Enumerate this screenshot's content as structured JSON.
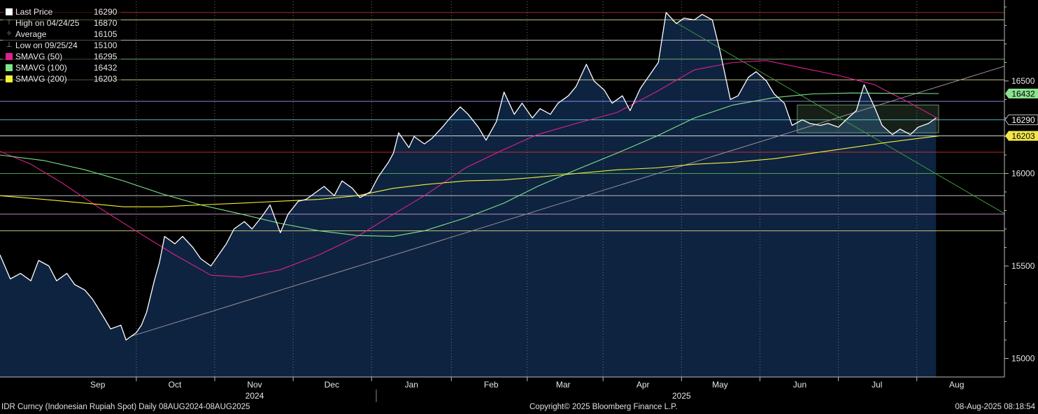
{
  "chart_data": {
    "type": "line",
    "title": "",
    "x_range": [
      "2024-08-08",
      "2025-08-08"
    ],
    "ylim": [
      14900,
      16930
    ],
    "y_ticks": [
      15000,
      15500,
      16000,
      16500
    ],
    "x_ticks": [
      {
        "date": "2024-09-15",
        "label": "Sep"
      },
      {
        "date": "2024-10-15",
        "label": "Oct"
      },
      {
        "date": "2024-11-15",
        "label": "Nov"
      },
      {
        "date": "2024-12-15",
        "label": "Dec"
      },
      {
        "date": "2025-01-15",
        "label": "Jan"
      },
      {
        "date": "2025-02-15",
        "label": "Feb"
      },
      {
        "date": "2025-03-15",
        "label": "Mar"
      },
      {
        "date": "2025-04-15",
        "label": "Apr"
      },
      {
        "date": "2025-05-15",
        "label": "May"
      },
      {
        "date": "2025-06-15",
        "label": "Jun"
      },
      {
        "date": "2025-07-15",
        "label": "Jul"
      },
      {
        "date": "2025-08-15",
        "label": "Aug"
      }
    ],
    "year_labels": [
      {
        "date": "2024-11-15",
        "label": "2024"
      },
      {
        "date": "2025-04-30",
        "label": "2025"
      }
    ],
    "legend": [
      {
        "symbol": "square",
        "label": "Last Price",
        "value": "16290",
        "color": "#ffffff"
      },
      {
        "symbol": "high",
        "label": "High on 04/24/25",
        "value": "16870",
        "color": "#9a9a9a"
      },
      {
        "symbol": "avg",
        "label": "Average",
        "value": "16105",
        "color": "#9a9a9a"
      },
      {
        "symbol": "low",
        "label": "Low on 09/25/24",
        "value": "15100",
        "color": "#9a9a9a"
      },
      {
        "symbol": "square",
        "label": "SMAVG (50)",
        "value": "16295",
        "color": "#e0208f"
      },
      {
        "symbol": "square",
        "label": "SMAVG (100)",
        "value": "16432",
        "color": "#7ee68a"
      },
      {
        "symbol": "square",
        "label": "SMAVG (200)",
        "value": "16203",
        "color": "#f2f23a"
      }
    ],
    "value_tags": [
      {
        "value": 16432,
        "label": "16432",
        "bg": "#8be28f",
        "fg": "#000000"
      },
      {
        "value": 16290,
        "label": "16290",
        "bg": "#000000",
        "fg": "#ffffff"
      },
      {
        "value": 16203,
        "label": "16203",
        "bg": "#f2e64a",
        "fg": "#000000"
      }
    ],
    "horizontal_lines": [
      {
        "value": 16870,
        "color": "#c0392b"
      },
      {
        "value": 16830,
        "color": "#e8e08a"
      },
      {
        "value": 16720,
        "color": "#d8d8e8"
      },
      {
        "value": 16618,
        "color": "#7ec97e"
      },
      {
        "value": 16506,
        "color": "#e8e08a"
      },
      {
        "value": 16390,
        "color": "#9aa0ff"
      },
      {
        "value": 16290,
        "color": "#5fd0e0"
      },
      {
        "value": 16203,
        "color": "#ffffff"
      },
      {
        "value": 16115,
        "color": "#e03030"
      },
      {
        "value": 16000,
        "color": "#50c050"
      },
      {
        "value": 15880,
        "color": "#d8d8d8"
      },
      {
        "value": 15780,
        "color": "#d8a0e0"
      },
      {
        "value": 15690,
        "color": "#e8e08a"
      }
    ],
    "trend_lines": [
      {
        "from": [
          "2024-09-28",
          15120
        ],
        "to": [
          "2025-08-08",
          16470
        ],
        "color": "#9a8f9a"
      },
      {
        "from": [
          "2025-04-26",
          16830
        ],
        "to": [
          "2025-08-08",
          15990
        ],
        "color": "#3f9a3f"
      }
    ],
    "channel_box": {
      "from": "2025-06-14",
      "to": "2025-08-08",
      "top": 16370,
      "bottom": 16220,
      "color": "#9fe0a0"
    },
    "series": [
      {
        "name": "Last Price",
        "color": "#ffffff",
        "fill": "#0e2340",
        "points": [
          [
            "2024-08-08",
            15560
          ],
          [
            "2024-08-12",
            15430
          ],
          [
            "2024-08-16",
            15460
          ],
          [
            "2024-08-20",
            15420
          ],
          [
            "2024-08-23",
            15530
          ],
          [
            "2024-08-27",
            15500
          ],
          [
            "2024-08-30",
            15420
          ],
          [
            "2024-09-03",
            15460
          ],
          [
            "2024-09-06",
            15400
          ],
          [
            "2024-09-10",
            15370
          ],
          [
            "2024-09-13",
            15320
          ],
          [
            "2024-09-17",
            15230
          ],
          [
            "2024-09-20",
            15160
          ],
          [
            "2024-09-24",
            15180
          ],
          [
            "2024-09-26",
            15100
          ],
          [
            "2024-09-30",
            15140
          ],
          [
            "2024-10-02",
            15180
          ],
          [
            "2024-10-04",
            15250
          ],
          [
            "2024-10-07",
            15420
          ],
          [
            "2024-10-09",
            15520
          ],
          [
            "2024-10-11",
            15660
          ],
          [
            "2024-10-15",
            15620
          ],
          [
            "2024-10-18",
            15660
          ],
          [
            "2024-10-22",
            15600
          ],
          [
            "2024-10-25",
            15540
          ],
          [
            "2024-10-29",
            15500
          ],
          [
            "2024-11-01",
            15560
          ],
          [
            "2024-11-04",
            15620
          ],
          [
            "2024-11-07",
            15700
          ],
          [
            "2024-11-11",
            15740
          ],
          [
            "2024-11-14",
            15700
          ],
          [
            "2024-11-18",
            15770
          ],
          [
            "2024-11-21",
            15830
          ],
          [
            "2024-11-25",
            15680
          ],
          [
            "2024-11-28",
            15780
          ],
          [
            "2024-12-02",
            15850
          ],
          [
            "2024-12-05",
            15860
          ],
          [
            "2024-12-09",
            15900
          ],
          [
            "2024-12-12",
            15930
          ],
          [
            "2024-12-16",
            15880
          ],
          [
            "2024-12-19",
            15960
          ],
          [
            "2024-12-23",
            15920
          ],
          [
            "2024-12-26",
            15870
          ],
          [
            "2024-12-30",
            15900
          ],
          [
            "2025-01-02",
            15980
          ],
          [
            "2025-01-06",
            16060
          ],
          [
            "2025-01-08",
            16110
          ],
          [
            "2025-01-10",
            16220
          ],
          [
            "2025-01-14",
            16140
          ],
          [
            "2025-01-16",
            16200
          ],
          [
            "2025-01-20",
            16160
          ],
          [
            "2025-01-23",
            16190
          ],
          [
            "2025-01-27",
            16250
          ],
          [
            "2025-01-30",
            16300
          ],
          [
            "2025-02-03",
            16360
          ],
          [
            "2025-02-06",
            16320
          ],
          [
            "2025-02-10",
            16250
          ],
          [
            "2025-02-13",
            16180
          ],
          [
            "2025-02-17",
            16280
          ],
          [
            "2025-02-20",
            16440
          ],
          [
            "2025-02-24",
            16320
          ],
          [
            "2025-02-27",
            16380
          ],
          [
            "2025-03-03",
            16300
          ],
          [
            "2025-03-06",
            16350
          ],
          [
            "2025-03-10",
            16320
          ],
          [
            "2025-03-13",
            16380
          ],
          [
            "2025-03-17",
            16420
          ],
          [
            "2025-03-20",
            16470
          ],
          [
            "2025-03-24",
            16590
          ],
          [
            "2025-03-27",
            16500
          ],
          [
            "2025-03-31",
            16450
          ],
          [
            "2025-04-03",
            16380
          ],
          [
            "2025-04-07",
            16420
          ],
          [
            "2025-04-10",
            16340
          ],
          [
            "2025-04-14",
            16460
          ],
          [
            "2025-04-17",
            16520
          ],
          [
            "2025-04-21",
            16600
          ],
          [
            "2025-04-24",
            16870
          ],
          [
            "2025-04-28",
            16810
          ],
          [
            "2025-05-01",
            16840
          ],
          [
            "2025-05-05",
            16830
          ],
          [
            "2025-05-08",
            16860
          ],
          [
            "2025-05-12",
            16830
          ],
          [
            "2025-05-15",
            16660
          ],
          [
            "2025-05-19",
            16400
          ],
          [
            "2025-05-22",
            16420
          ],
          [
            "2025-05-26",
            16520
          ],
          [
            "2025-05-29",
            16550
          ],
          [
            "2025-06-02",
            16500
          ],
          [
            "2025-06-05",
            16430
          ],
          [
            "2025-06-09",
            16380
          ],
          [
            "2025-06-12",
            16260
          ],
          [
            "2025-06-16",
            16290
          ],
          [
            "2025-06-19",
            16270
          ],
          [
            "2025-06-23",
            16260
          ],
          [
            "2025-06-26",
            16270
          ],
          [
            "2025-06-30",
            16250
          ],
          [
            "2025-07-03",
            16290
          ],
          [
            "2025-07-07",
            16340
          ],
          [
            "2025-07-10",
            16480
          ],
          [
            "2025-07-14",
            16360
          ],
          [
            "2025-07-17",
            16260
          ],
          [
            "2025-07-21",
            16210
          ],
          [
            "2025-07-24",
            16240
          ],
          [
            "2025-07-28",
            16210
          ],
          [
            "2025-07-31",
            16250
          ],
          [
            "2025-08-04",
            16270
          ],
          [
            "2025-08-07",
            16300
          ]
        ]
      },
      {
        "name": "SMAVG (50)",
        "color": "#e0208f",
        "points": [
          [
            "2024-08-08",
            16120
          ],
          [
            "2024-08-20",
            16050
          ],
          [
            "2024-09-01",
            15950
          ],
          [
            "2024-09-15",
            15820
          ],
          [
            "2024-10-01",
            15680
          ],
          [
            "2024-10-15",
            15560
          ],
          [
            "2024-10-29",
            15450
          ],
          [
            "2024-11-10",
            15440
          ],
          [
            "2024-11-25",
            15480
          ],
          [
            "2024-12-10",
            15560
          ],
          [
            "2024-12-25",
            15660
          ],
          [
            "2025-01-08",
            15780
          ],
          [
            "2025-01-20",
            15880
          ],
          [
            "2025-02-05",
            16030
          ],
          [
            "2025-02-20",
            16130
          ],
          [
            "2025-03-05",
            16210
          ],
          [
            "2025-03-20",
            16270
          ],
          [
            "2025-04-05",
            16330
          ],
          [
            "2025-04-20",
            16440
          ],
          [
            "2025-05-05",
            16560
          ],
          [
            "2025-05-20",
            16600
          ],
          [
            "2025-06-02",
            16610
          ],
          [
            "2025-06-16",
            16570
          ],
          [
            "2025-06-30",
            16530
          ],
          [
            "2025-07-14",
            16480
          ],
          [
            "2025-07-28",
            16380
          ],
          [
            "2025-08-08",
            16295
          ]
        ]
      },
      {
        "name": "SMAVG (100)",
        "color": "#7ee68a",
        "points": [
          [
            "2024-08-08",
            16100
          ],
          [
            "2024-08-25",
            16070
          ],
          [
            "2024-09-10",
            16020
          ],
          [
            "2024-09-25",
            15960
          ],
          [
            "2024-10-10",
            15890
          ],
          [
            "2024-10-25",
            15830
          ],
          [
            "2024-11-10",
            15780
          ],
          [
            "2024-11-25",
            15730
          ],
          [
            "2024-12-10",
            15690
          ],
          [
            "2024-12-25",
            15665
          ],
          [
            "2025-01-08",
            15660
          ],
          [
            "2025-01-20",
            15690
          ],
          [
            "2025-02-05",
            15760
          ],
          [
            "2025-02-20",
            15840
          ],
          [
            "2025-03-05",
            15930
          ],
          [
            "2025-03-20",
            16020
          ],
          [
            "2025-04-05",
            16110
          ],
          [
            "2025-04-20",
            16200
          ],
          [
            "2025-05-05",
            16300
          ],
          [
            "2025-05-20",
            16370
          ],
          [
            "2025-06-05",
            16410
          ],
          [
            "2025-06-20",
            16430
          ],
          [
            "2025-07-05",
            16435
          ],
          [
            "2025-07-20",
            16433
          ],
          [
            "2025-08-08",
            16432
          ]
        ]
      },
      {
        "name": "SMAVG (200)",
        "color": "#f2f23a",
        "points": [
          [
            "2024-08-08",
            15880
          ],
          [
            "2024-08-25",
            15860
          ],
          [
            "2024-09-10",
            15840
          ],
          [
            "2024-09-25",
            15820
          ],
          [
            "2024-10-10",
            15820
          ],
          [
            "2024-10-25",
            15830
          ],
          [
            "2024-11-10",
            15840
          ],
          [
            "2024-11-25",
            15850
          ],
          [
            "2024-12-10",
            15860
          ],
          [
            "2024-12-25",
            15880
          ],
          [
            "2025-01-08",
            15920
          ],
          [
            "2025-01-20",
            15940
          ],
          [
            "2025-02-05",
            15960
          ],
          [
            "2025-02-20",
            15965
          ],
          [
            "2025-03-05",
            15980
          ],
          [
            "2025-03-20",
            16000
          ],
          [
            "2025-04-05",
            16020
          ],
          [
            "2025-04-20",
            16030
          ],
          [
            "2025-05-05",
            16050
          ],
          [
            "2025-05-20",
            16060
          ],
          [
            "2025-06-05",
            16080
          ],
          [
            "2025-06-20",
            16110
          ],
          [
            "2025-07-05",
            16140
          ],
          [
            "2025-07-20",
            16170
          ],
          [
            "2025-08-08",
            16203
          ]
        ]
      }
    ]
  },
  "footer": {
    "left": "IDR Curncy (Indonesian Rupiah Spot)  Daily 08AUG2024-08AUG2025",
    "center": "Copyright© 2025 Bloomberg Finance L.P.",
    "right": "08-Aug-2025 08:18:54"
  }
}
